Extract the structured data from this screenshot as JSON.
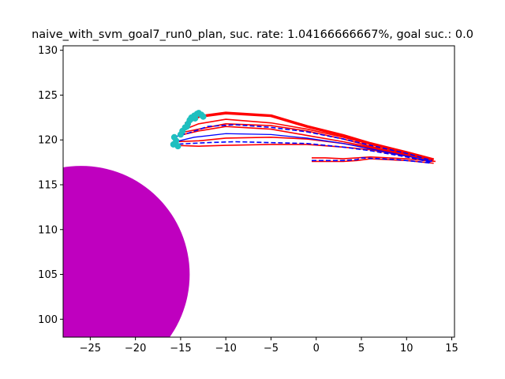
{
  "chart_data": {
    "type": "line",
    "title": "naive_with_svm_goal7_run0_plan, suc. rate: 1.04166666667%, goal suc.: 0.0",
    "xlabel": "",
    "ylabel": "",
    "xlim": [
      -28.0,
      15.3
    ],
    "ylim": [
      98.0,
      130.5
    ],
    "xticks": [
      -25,
      -20,
      -15,
      -10,
      -5,
      0,
      5,
      10,
      15
    ],
    "yticks": [
      100,
      105,
      110,
      115,
      120,
      125,
      130
    ],
    "xtick_labels": [
      "−25",
      "−20",
      "−15",
      "−10",
      "−5",
      "0",
      "5",
      "10",
      "15"
    ],
    "ytick_labels": [
      "100",
      "105",
      "110",
      "115",
      "120",
      "125",
      "130"
    ],
    "grid": false,
    "obstacle": {
      "shape": "circle",
      "center": [
        -26.0,
        105.0
      ],
      "radius": 12.0,
      "color": "#bf00bf"
    },
    "red_trajectories": {
      "color": "#ff0000",
      "series": [
        {
          "x": [
            -15.5,
            -13,
            -10,
            -5,
            -1,
            3,
            6,
            10,
            12.5
          ],
          "y": [
            119.8,
            119.9,
            120.2,
            120.3,
            120.1,
            119.6,
            119.1,
            118.3,
            117.8
          ]
        },
        {
          "x": [
            -15.2,
            -13,
            -10,
            -5,
            -1,
            3,
            6,
            10,
            12.7
          ],
          "y": [
            120.5,
            121.0,
            121.5,
            121.2,
            120.5,
            119.8,
            119.2,
            118.4,
            117.9
          ]
        },
        {
          "x": [
            -15.0,
            -13,
            -10,
            -5,
            -1,
            3,
            6,
            10,
            12.8
          ],
          "y": [
            121.0,
            121.8,
            122.3,
            121.9,
            121.2,
            120.3,
            119.5,
            118.5,
            117.9
          ]
        },
        {
          "x": [
            -14.5,
            -13,
            -10,
            -5,
            -1,
            3,
            6,
            10,
            13.0
          ],
          "y": [
            121.8,
            122.6,
            123.0,
            122.7,
            121.5,
            120.5,
            119.6,
            118.6,
            117.8
          ]
        },
        {
          "x": [
            -15.6,
            -13,
            -10,
            -5,
            -1,
            3,
            6,
            10,
            12.6
          ],
          "y": [
            119.4,
            119.3,
            119.4,
            119.5,
            119.5,
            119.2,
            118.9,
            118.2,
            117.7
          ]
        },
        {
          "x": [
            -15.0,
            -13,
            -10,
            -5,
            -1,
            3,
            6,
            10,
            12.9
          ],
          "y": [
            120.8,
            121.2,
            121.8,
            121.6,
            121.0,
            120.1,
            119.3,
            118.4,
            117.8
          ]
        },
        {
          "x": [
            -0.5,
            1,
            3,
            4.5,
            6,
            8,
            10,
            12,
            13.2
          ],
          "y": [
            118.0,
            118.0,
            117.9,
            118.0,
            118.1,
            118.0,
            117.9,
            117.7,
            117.6
          ]
        },
        {
          "x": [
            -0.5,
            1,
            3,
            4.5,
            6,
            8,
            10,
            12,
            13.0
          ],
          "y": [
            117.6,
            117.6,
            117.6,
            117.7,
            117.9,
            117.8,
            117.7,
            117.5,
            117.4
          ]
        }
      ]
    },
    "blue_mean": {
      "color": "#0000ff",
      "x": [
        -16.0,
        -13.5,
        -10,
        -5,
        -1,
        3,
        6,
        10,
        12.8
      ],
      "y": [
        119.7,
        120.3,
        120.7,
        120.6,
        120.2,
        119.6,
        119.0,
        118.2,
        117.6
      ]
    },
    "blue_dashed_bounds": {
      "color": "#0000ff",
      "series": [
        {
          "x": [
            -15.8,
            -14,
            -12,
            -9,
            -5,
            -1,
            3,
            6,
            10,
            12.8
          ],
          "y": [
            120.3,
            120.8,
            121.5,
            121.7,
            121.4,
            120.9,
            120.1,
            119.4,
            118.5,
            117.7
          ]
        },
        {
          "x": [
            -16.0,
            -14,
            -12,
            -9,
            -5,
            -1,
            3,
            6,
            10,
            12.8
          ],
          "y": [
            119.5,
            119.6,
            119.7,
            119.8,
            119.7,
            119.6,
            119.2,
            118.8,
            118.1,
            117.5
          ]
        },
        {
          "x": [
            -0.5,
            1,
            3,
            4.5,
            5,
            7,
            9,
            11,
            12.8
          ],
          "y": [
            117.7,
            117.7,
            117.7,
            117.8,
            118.0,
            117.9,
            117.8,
            117.6,
            117.4
          ]
        }
      ]
    },
    "cyan_points": {
      "color": "#1fbfbf",
      "x": [
        -15.8,
        -15.5,
        -15.7,
        -15.3,
        -15.0,
        -14.8,
        -14.5,
        -14.2,
        -14.0,
        -13.8,
        -13.5,
        -13.2,
        -13.0,
        -12.7,
        -12.5,
        -14.3,
        -13.9,
        -13.4
      ],
      "y": [
        119.5,
        119.9,
        120.3,
        119.3,
        120.6,
        121.0,
        121.4,
        121.8,
        122.2,
        122.5,
        122.7,
        122.9,
        123.0,
        122.8,
        122.6,
        121.5,
        122.3,
        122.4
      ]
    }
  }
}
